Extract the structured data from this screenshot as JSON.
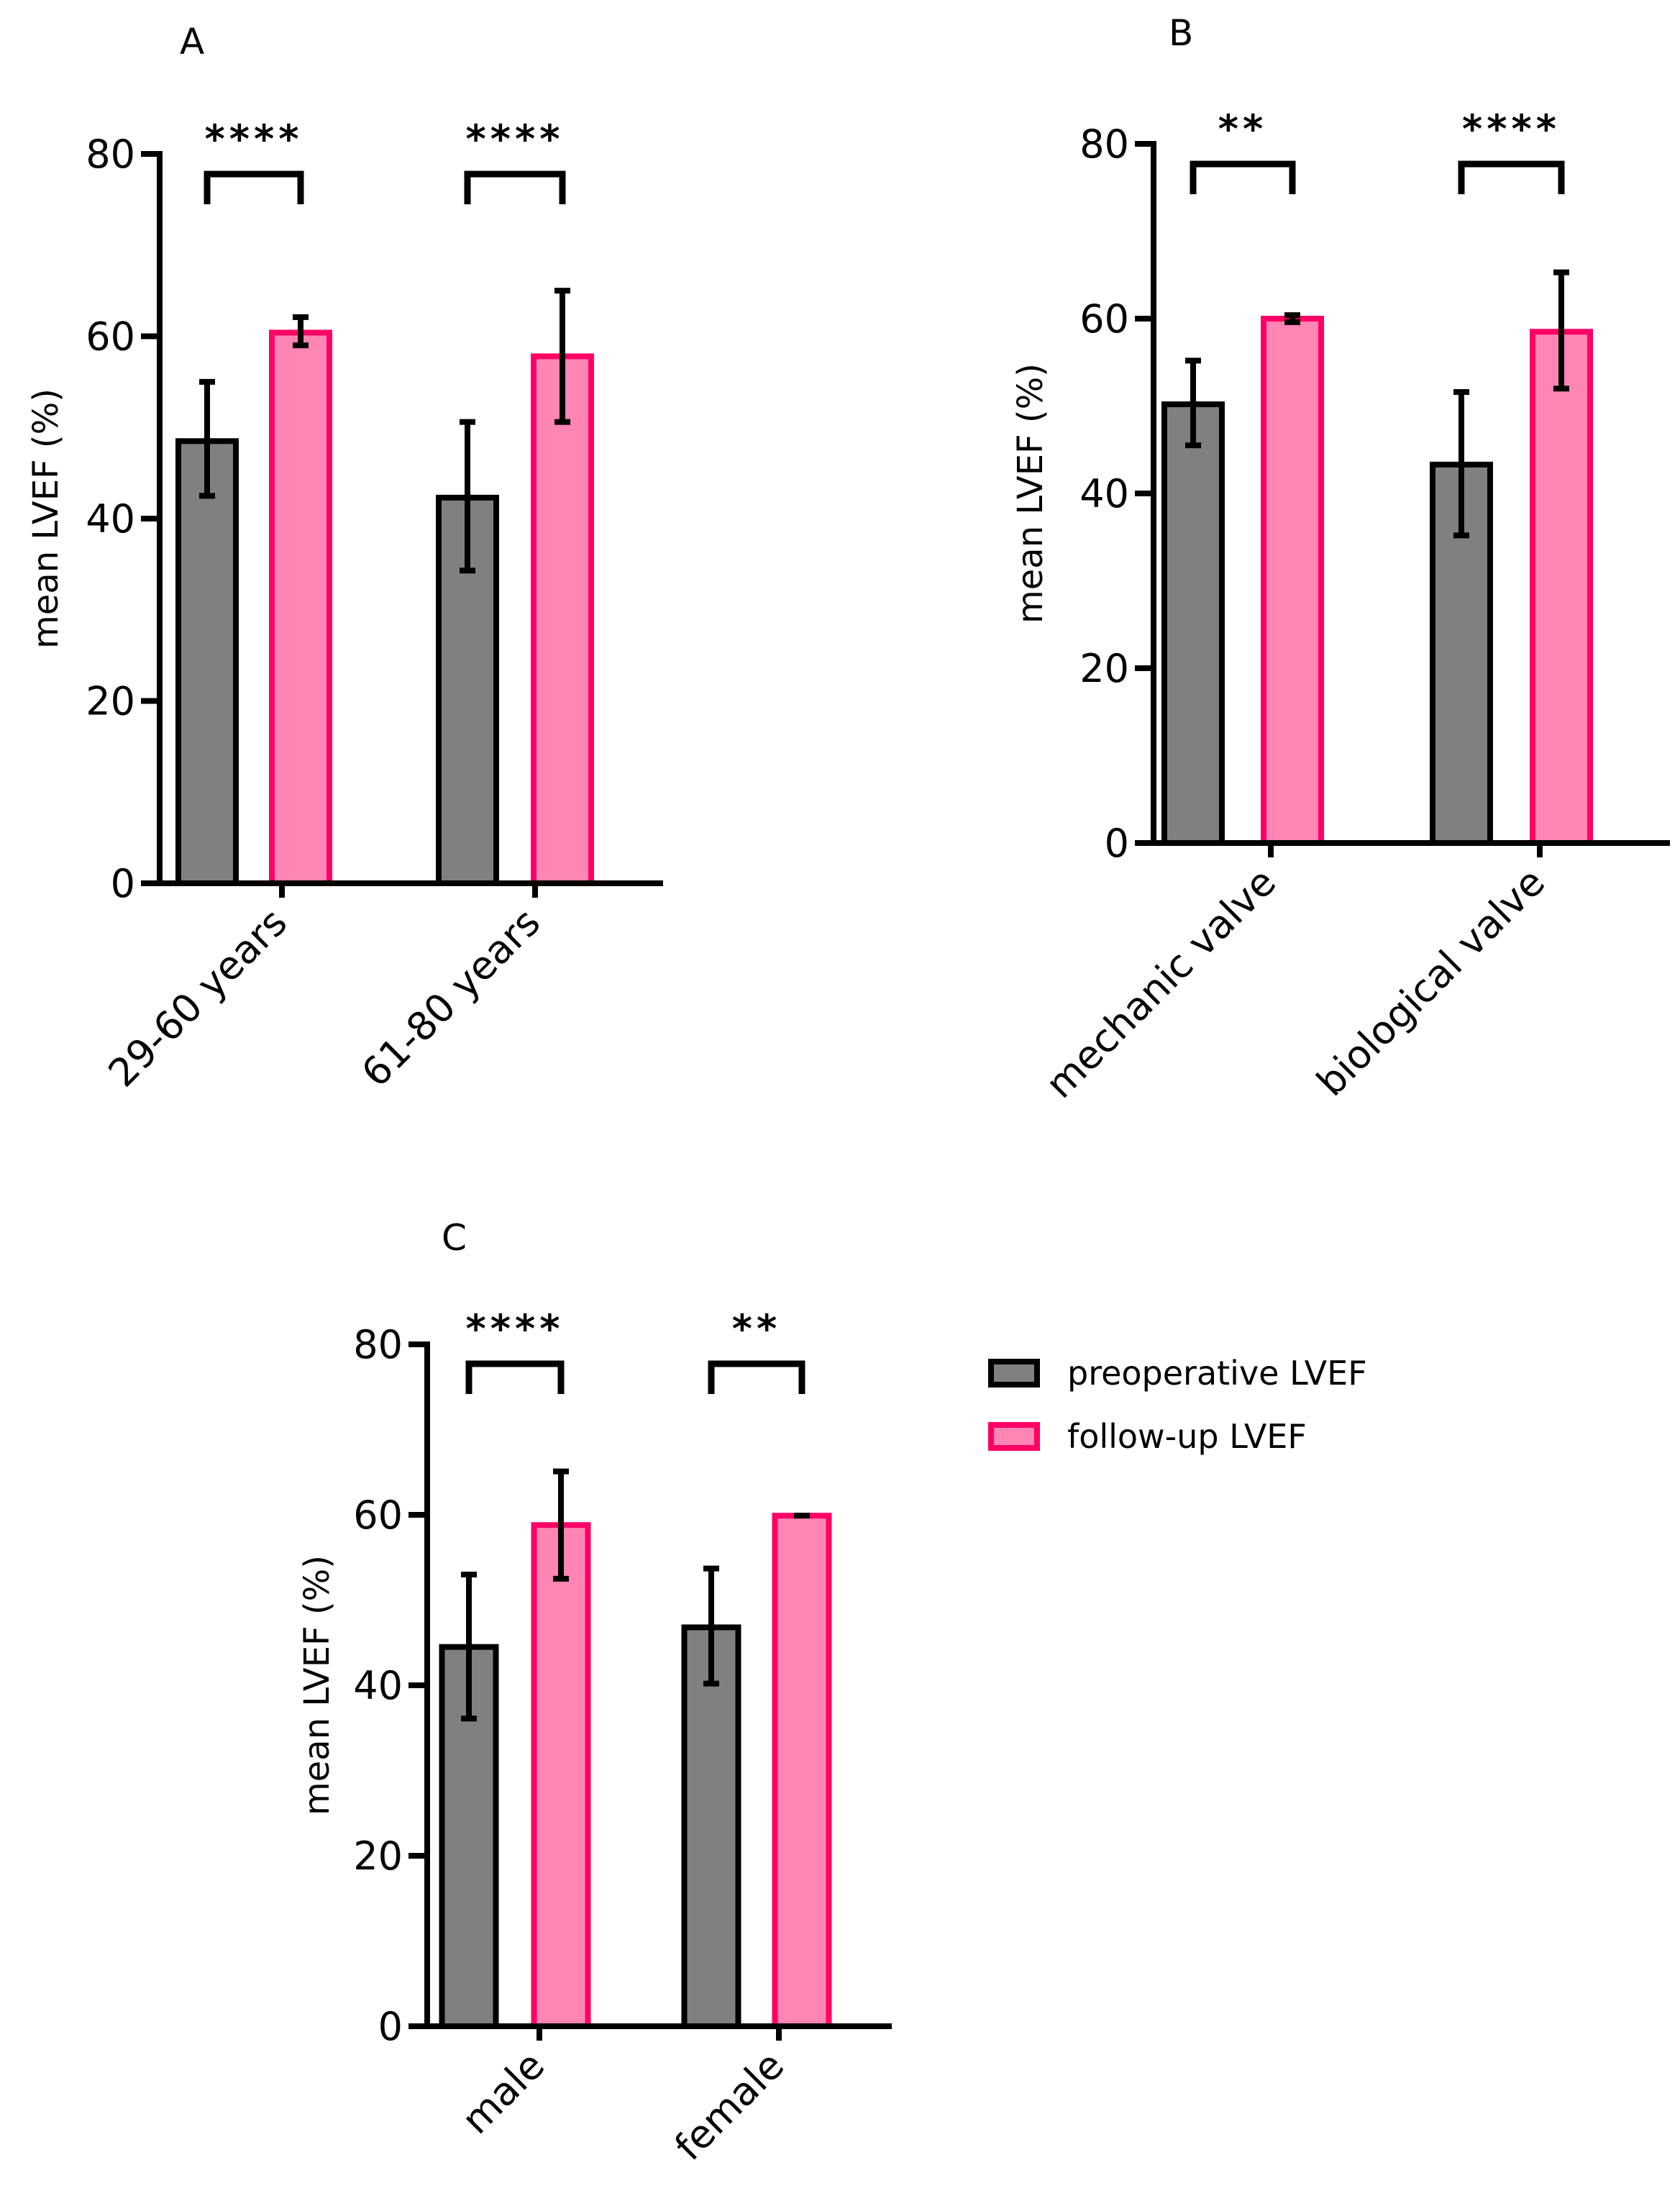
{
  "chart_data": [
    {
      "type": "bar",
      "panel": "A",
      "categories": [
        "29-60 years",
        "61-80 years"
      ],
      "series": [
        {
          "name": "preoperative LVEF",
          "values": [
            48.5,
            42.3
          ],
          "err_low": [
            42.5,
            34.3
          ],
          "err_high": [
            55.0,
            50.6
          ]
        },
        {
          "name": "follow-up LVEF",
          "values": [
            60.4,
            57.8
          ],
          "err_low": [
            59.0,
            50.6
          ],
          "err_high": [
            62.1,
            65.0
          ]
        }
      ],
      "significance": [
        "****",
        "****"
      ],
      "ylabel": "mean LVEF (%)",
      "ylim": [
        0,
        80
      ],
      "yticks": [
        "0",
        "20",
        "40",
        "60",
        "80"
      ]
    },
    {
      "type": "bar",
      "panel": "B",
      "categories": [
        "mechanic valve",
        "biological valve"
      ],
      "series": [
        {
          "name": "preoperative LVEF",
          "values": [
            50.2,
            43.3
          ],
          "err_low": [
            45.5,
            35.2
          ],
          "err_high": [
            55.2,
            51.6
          ]
        },
        {
          "name": "follow-up LVEF",
          "values": [
            60.0,
            58.5
          ],
          "err_low": [
            59.6,
            52.0
          ],
          "err_high": [
            60.4,
            65.3
          ]
        }
      ],
      "significance": [
        "**",
        "****"
      ],
      "ylabel": "mean LVEF (%)",
      "ylim": [
        0,
        80
      ],
      "yticks": [
        "0",
        "20",
        "40",
        "60",
        "80"
      ]
    },
    {
      "type": "bar",
      "panel": "C",
      "categories": [
        "male",
        "female"
      ],
      "series": [
        {
          "name": "preoperative LVEF",
          "values": [
            44.5,
            46.8
          ],
          "err_low": [
            36.1,
            40.2
          ],
          "err_high": [
            53.0,
            53.7
          ]
        },
        {
          "name": "follow-up LVEF",
          "values": [
            58.8,
            59.9
          ],
          "err_low": [
            52.5,
            59.9
          ],
          "err_high": [
            65.1,
            59.9
          ]
        }
      ],
      "significance": [
        "****",
        "**"
      ],
      "ylabel": "mean LVEF (%)",
      "ylim": [
        0,
        80
      ],
      "yticks": [
        "0",
        "20",
        "40",
        "60",
        "80"
      ]
    }
  ],
  "legend": {
    "items": [
      "preoperative LVEF",
      "follow-up LVEF"
    ]
  },
  "colors": {
    "preoperative_fill": "#808080",
    "preoperative_stroke": "#000000",
    "followup_fill": "#ff85b4",
    "followup_stroke": "#ff0066"
  }
}
